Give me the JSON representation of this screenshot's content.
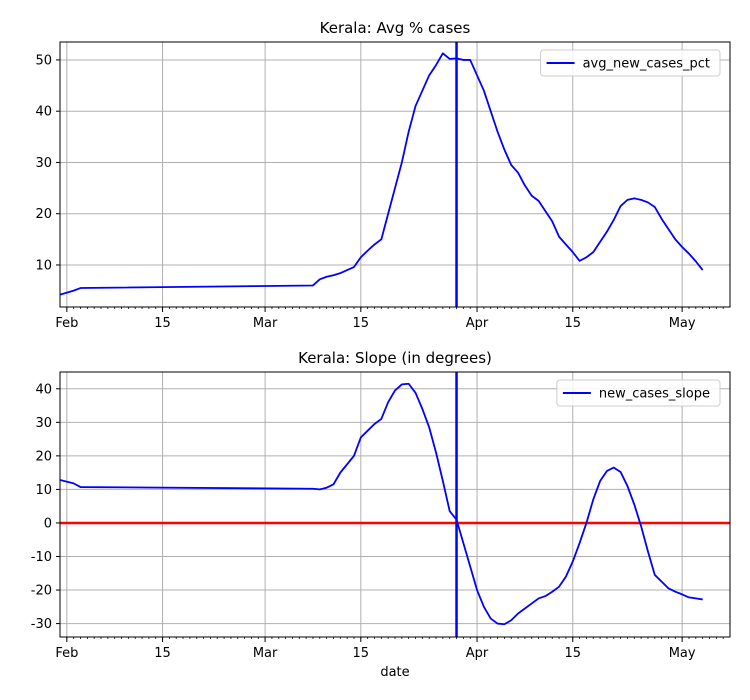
{
  "chart_data": [
    {
      "type": "line",
      "title": "Kerala: Avg % cases",
      "xlabel": "",
      "ylabel": "",
      "x_range": [
        "2020-01-31",
        "2020-05-08"
      ],
      "ylim": [
        1.8,
        53.5
      ],
      "yticks": [
        10,
        20,
        30,
        40,
        50
      ],
      "xticks": [
        {
          "date": "2020-02-01",
          "label": "Feb"
        },
        {
          "date": "2020-02-15",
          "label": "15"
        },
        {
          "date": "2020-03-01",
          "label": "Mar"
        },
        {
          "date": "2020-03-15",
          "label": "15"
        },
        {
          "date": "2020-04-01",
          "label": "Apr"
        },
        {
          "date": "2020-04-15",
          "label": "15"
        },
        {
          "date": "2020-05-01",
          "label": "May"
        }
      ],
      "grid": true,
      "legend_position": "top-right",
      "vline": {
        "date": "2020-03-29",
        "color": "#0000ff"
      },
      "series": [
        {
          "name": "avg_new_cases_pct",
          "color": "#0000ff",
          "x": [
            "2020-01-31",
            "2020-02-02",
            "2020-02-03",
            "2020-03-08",
            "2020-03-09",
            "2020-03-10",
            "2020-03-11",
            "2020-03-12",
            "2020-03-13",
            "2020-03-14",
            "2020-03-15",
            "2020-03-16",
            "2020-03-17",
            "2020-03-18",
            "2020-03-19",
            "2020-03-20",
            "2020-03-21",
            "2020-03-22",
            "2020-03-23",
            "2020-03-24",
            "2020-03-25",
            "2020-03-26",
            "2020-03-27",
            "2020-03-28",
            "2020-03-29",
            "2020-03-30",
            "2020-03-31",
            "2020-04-01",
            "2020-04-02",
            "2020-04-03",
            "2020-04-04",
            "2020-04-05",
            "2020-04-06",
            "2020-04-07",
            "2020-04-08",
            "2020-04-09",
            "2020-04-10",
            "2020-04-11",
            "2020-04-12",
            "2020-04-13",
            "2020-04-14",
            "2020-04-15",
            "2020-04-16",
            "2020-04-17",
            "2020-04-18",
            "2020-04-19",
            "2020-04-20",
            "2020-04-21",
            "2020-04-22",
            "2020-04-23",
            "2020-04-24",
            "2020-04-25",
            "2020-04-26",
            "2020-04-27",
            "2020-04-28",
            "2020-04-29",
            "2020-04-30",
            "2020-05-01",
            "2020-05-02",
            "2020-05-03",
            "2020-05-04"
          ],
          "y": [
            4.2,
            5.0,
            5.5,
            6.0,
            7.2,
            7.7,
            8.0,
            8.4,
            9.0,
            9.6,
            11.5,
            12.8,
            14.0,
            15.0,
            20.0,
            25.0,
            30.0,
            36.0,
            41.0,
            44.0,
            47.0,
            49.0,
            51.3,
            50.2,
            50.3,
            50.0,
            50.0,
            47.0,
            44.0,
            40.0,
            36.0,
            32.5,
            29.5,
            28.0,
            25.5,
            23.5,
            22.5,
            20.5,
            18.5,
            15.5,
            14.0,
            12.5,
            10.8,
            11.5,
            12.5,
            14.5,
            16.5,
            18.8,
            21.5,
            22.7,
            23.0,
            22.7,
            22.2,
            21.3,
            19.0,
            17.0,
            15.0,
            13.5,
            12.2,
            10.7,
            9.0
          ]
        }
      ]
    },
    {
      "type": "line",
      "title": "Kerala: Slope (in degrees)",
      "xlabel": "date",
      "ylabel": "",
      "x_range": [
        "2020-01-31",
        "2020-05-08"
      ],
      "ylim": [
        -34,
        45
      ],
      "yticks": [
        -30,
        -20,
        -10,
        0,
        10,
        20,
        30,
        40
      ],
      "xticks": [
        {
          "date": "2020-02-01",
          "label": "Feb"
        },
        {
          "date": "2020-02-15",
          "label": "15"
        },
        {
          "date": "2020-03-01",
          "label": "Mar"
        },
        {
          "date": "2020-03-15",
          "label": "15"
        },
        {
          "date": "2020-04-01",
          "label": "Apr"
        },
        {
          "date": "2020-04-15",
          "label": "15"
        },
        {
          "date": "2020-05-01",
          "label": "May"
        }
      ],
      "grid": true,
      "legend_position": "top-right",
      "vline": {
        "date": "2020-03-29",
        "color": "#0000ff"
      },
      "hline": {
        "y": 0,
        "color": "#ff0000"
      },
      "series": [
        {
          "name": "new_cases_slope",
          "color": "#0000ff",
          "x": [
            "2020-01-31",
            "2020-02-02",
            "2020-02-03",
            "2020-03-08",
            "2020-03-09",
            "2020-03-10",
            "2020-03-11",
            "2020-03-12",
            "2020-03-13",
            "2020-03-14",
            "2020-03-15",
            "2020-03-16",
            "2020-03-17",
            "2020-03-18",
            "2020-03-19",
            "2020-03-20",
            "2020-03-21",
            "2020-03-22",
            "2020-03-23",
            "2020-03-24",
            "2020-03-25",
            "2020-03-26",
            "2020-03-27",
            "2020-03-28",
            "2020-03-29",
            "2020-03-30",
            "2020-03-31",
            "2020-04-01",
            "2020-04-02",
            "2020-04-03",
            "2020-04-04",
            "2020-04-05",
            "2020-04-06",
            "2020-04-07",
            "2020-04-08",
            "2020-04-09",
            "2020-04-10",
            "2020-04-11",
            "2020-04-12",
            "2020-04-13",
            "2020-04-14",
            "2020-04-15",
            "2020-04-16",
            "2020-04-17",
            "2020-04-18",
            "2020-04-19",
            "2020-04-20",
            "2020-04-21",
            "2020-04-22",
            "2020-04-23",
            "2020-04-24",
            "2020-04-25",
            "2020-04-26",
            "2020-04-27",
            "2020-04-28",
            "2020-04-29",
            "2020-04-30",
            "2020-05-01",
            "2020-05-02",
            "2020-05-03",
            "2020-05-04"
          ],
          "y": [
            12.8,
            11.8,
            10.7,
            10.2,
            10.0,
            10.5,
            11.5,
            15.0,
            17.5,
            20.0,
            25.5,
            27.5,
            29.5,
            31.0,
            36.0,
            39.5,
            41.3,
            41.5,
            38.8,
            34.0,
            28.5,
            21.0,
            12.5,
            3.5,
            1.0,
            -6.0,
            -13.0,
            -20.0,
            -25.0,
            -28.5,
            -30.0,
            -30.2,
            -29.0,
            -27.0,
            -25.5,
            -24.0,
            -22.5,
            -21.8,
            -20.5,
            -19.0,
            -16.0,
            -11.5,
            -6.0,
            0.0,
            7.0,
            12.5,
            15.5,
            16.5,
            15.2,
            11.0,
            5.5,
            -1.0,
            -8.5,
            -15.5,
            -17.5,
            -19.5,
            -20.5,
            -21.3,
            -22.2,
            -22.5,
            -22.8
          ]
        }
      ]
    }
  ]
}
